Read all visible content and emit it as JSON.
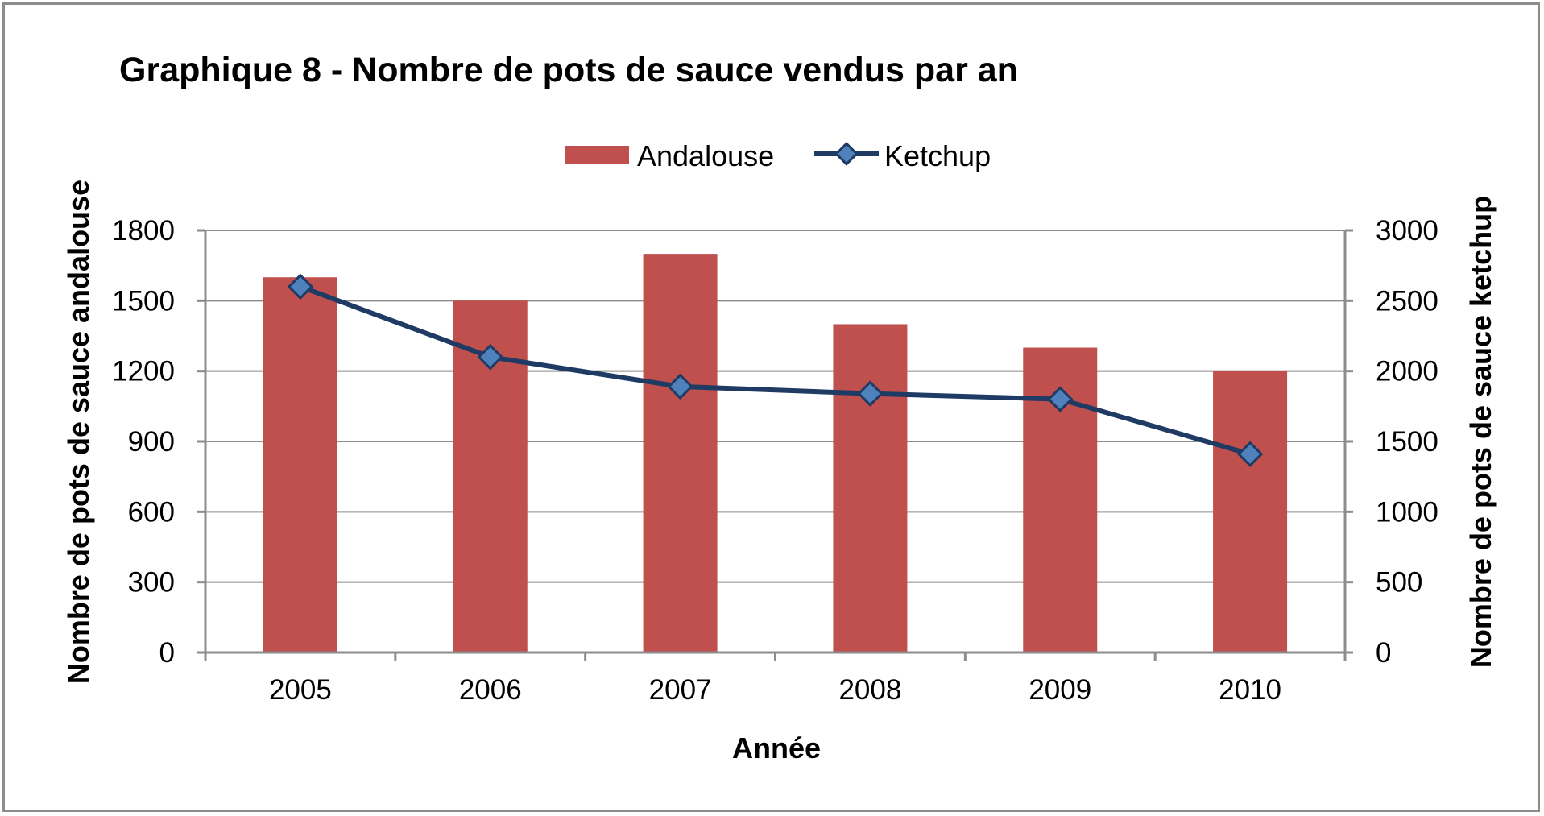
{
  "chart_data": {
    "type": "bar",
    "title": "Graphique 8 - Nombre de pots de sauce vendus par an",
    "xlabel": "Année",
    "ylabel": "Nombre de pots de sauce andalouse",
    "y2label": "Nombre de pots de sauce ketchup",
    "categories": [
      "2005",
      "2006",
      "2007",
      "2008",
      "2009",
      "2010"
    ],
    "series": [
      {
        "name": "Andalouse",
        "type": "bar",
        "axis": "left",
        "color": "#c0504d",
        "values": [
          1600,
          1500,
          1700,
          1400,
          1300,
          1200
        ]
      },
      {
        "name": "Ketchup",
        "type": "line",
        "axis": "right",
        "color": "#1f3b64",
        "marker": "diamond",
        "marker_color": "#4f81bd",
        "values": [
          2600,
          2100,
          1890,
          1840,
          1800,
          1410
        ]
      }
    ],
    "ylim": [
      0,
      1800
    ],
    "yticks": [
      "0",
      "300",
      "600",
      "900",
      "1200",
      "1500",
      "1800"
    ],
    "y2lim": [
      0,
      3000
    ],
    "y2ticks": [
      "0",
      "500",
      "1000",
      "1500",
      "2000",
      "2500",
      "3000"
    ],
    "grid": true,
    "legend_position": "top"
  }
}
